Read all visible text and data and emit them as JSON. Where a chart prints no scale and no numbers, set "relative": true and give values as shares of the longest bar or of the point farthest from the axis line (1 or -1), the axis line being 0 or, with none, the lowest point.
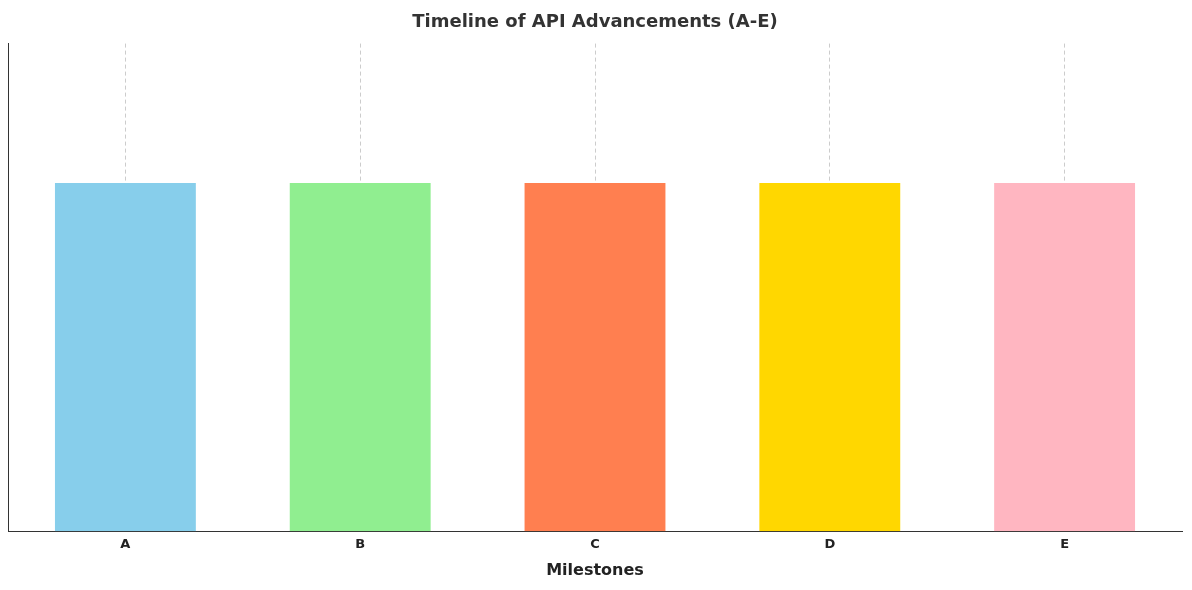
{
  "chart_data": {
    "type": "bar",
    "title": "Timeline of API Advancements (A-E)",
    "xlabel": "Milestones",
    "categories": [
      "A",
      "B",
      "C",
      "D",
      "E"
    ],
    "values": [
      1,
      1,
      1,
      1,
      1
    ],
    "colors": [
      "#87ceeb",
      "#90ee90",
      "#ff7f50",
      "#ffd700",
      "#ffb6c1"
    ],
    "relative": true,
    "grid": "x",
    "legend": false
  }
}
